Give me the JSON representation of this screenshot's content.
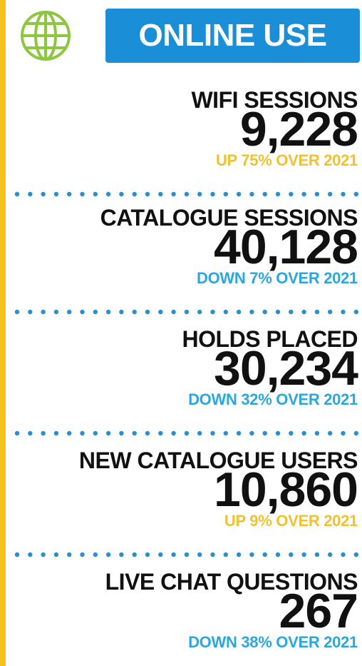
{
  "header": {
    "title": "ONLINE USE"
  },
  "stats": [
    {
      "label": "WIFI SESSIONS",
      "value": "9,228",
      "change": "UP 75% OVER 2021",
      "color": "#f2c12e"
    },
    {
      "label": "CATALOGUE SESSIONS",
      "value": "40,128",
      "change": "DOWN 7% OVER 2021",
      "color": "#2aa7df"
    },
    {
      "label": "HOLDS PLACED",
      "value": "30,234",
      "change": "DOWN 32% OVER 2021",
      "color": "#2aa7df"
    },
    {
      "label": "NEW CATALOGUE USERS",
      "value": "10,860",
      "change": "UP 9% OVER 2021",
      "color": "#f2c12e"
    },
    {
      "label": "LIVE CHAT QUESTIONS",
      "value": "267",
      "change": "DOWN 38% OVER 2021",
      "color": "#2aa7df"
    }
  ]
}
